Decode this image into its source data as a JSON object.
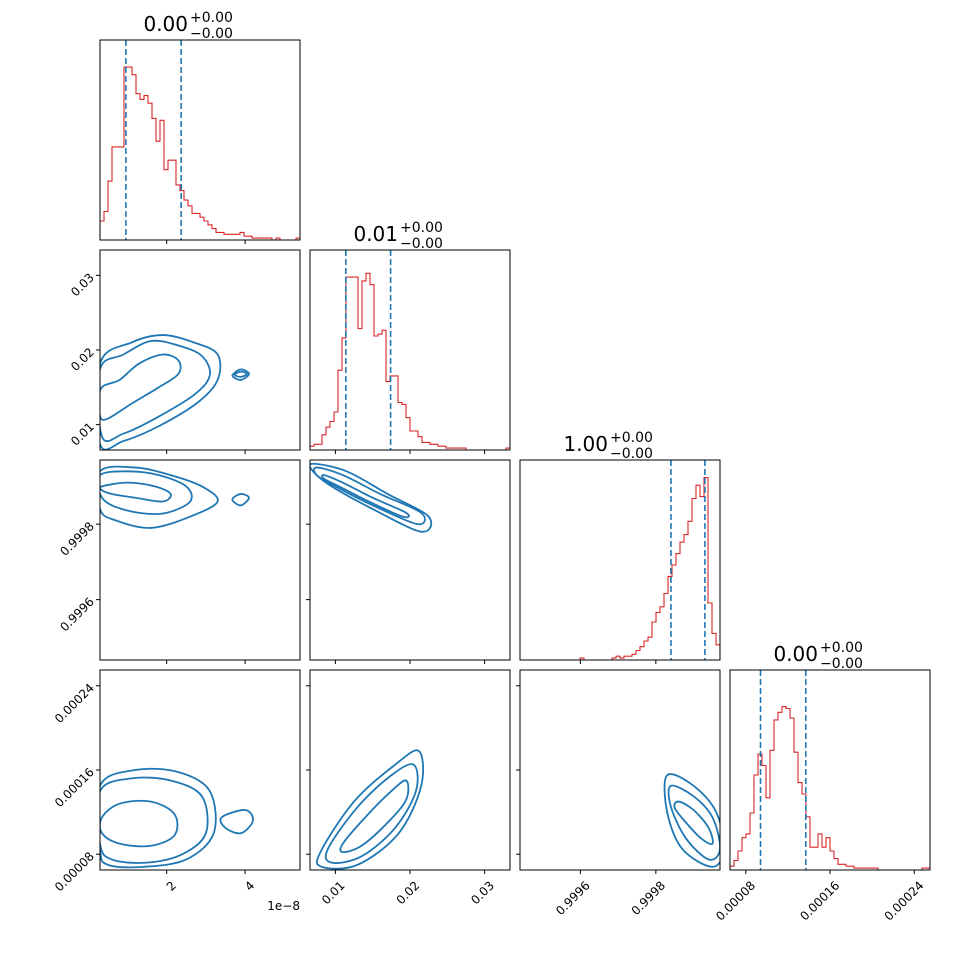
{
  "colors": {
    "hist": "#d62728",
    "quantile": "#1f77b4",
    "contour": "#1f77b4",
    "axes": "#000000",
    "background": "#ffffff"
  },
  "chart_data": {
    "type": "corner",
    "params": [
      {
        "title": {
          "value": "0.00",
          "plus": "+0.00",
          "minus": "−0.00"
        },
        "range": [
          3e-09,
          5.4e-08
        ],
        "ticks": [
          2e-08,
          4e-08
        ],
        "tick_labels": [
          "2",
          "4"
        ],
        "offset_text": "1e−8",
        "quantiles": [
          9.6e-09,
          2.37e-08
        ],
        "hist_y_max": 1.0,
        "hist": [
          0.1,
          0.15,
          0.31,
          0.49,
          0.49,
          0.49,
          0.91,
          0.91,
          0.87,
          0.77,
          0.74,
          0.76,
          0.72,
          0.64,
          0.52,
          0.63,
          0.37,
          0.42,
          0.42,
          0.29,
          0.26,
          0.21,
          0.18,
          0.14,
          0.14,
          0.12,
          0.1,
          0.08,
          0.06,
          0.04,
          0.04,
          0.03,
          0.03,
          0.03,
          0.03,
          0.04,
          0.02,
          0.02,
          0.01,
          0.01,
          0.01,
          0.01,
          0.01,
          0.0,
          0.01,
          0.0,
          0.0,
          0.0,
          0.0,
          0.01
        ]
      },
      {
        "title": {
          "value": "0.01",
          "plus": "+0.00",
          "minus": "−0.00"
        },
        "range": [
          0.0066,
          0.0334
        ],
        "ticks": [
          0.01,
          0.02,
          0.03
        ],
        "tick_labels": [
          "0.01",
          "0.02",
          "0.03"
        ],
        "quantiles": [
          0.0114,
          0.0174
        ],
        "hist_y_max": 1.0,
        "hist": [
          0.02,
          0.03,
          0.03,
          0.08,
          0.12,
          0.15,
          0.2,
          0.42,
          0.59,
          0.91,
          0.91,
          0.91,
          0.64,
          0.89,
          0.93,
          0.87,
          0.6,
          0.61,
          0.63,
          0.36,
          0.39,
          0.39,
          0.25,
          0.24,
          0.17,
          0.1,
          0.1,
          0.07,
          0.04,
          0.04,
          0.03,
          0.03,
          0.02,
          0.02,
          0.01,
          0.01,
          0.01,
          0.01,
          0.01,
          0.0,
          0.0,
          0.0,
          0.0,
          0.0,
          0.0,
          0.0,
          0.0,
          0.0,
          0.0,
          0.01
        ]
      },
      {
        "title": {
          "value": "1.00",
          "plus": "+0.00",
          "minus": "−0.00"
        },
        "range": [
          0.99944,
          0.99997
        ],
        "ticks": [
          0.9996,
          0.9998
        ],
        "tick_labels": [
          "0.9996",
          "0.9998"
        ],
        "quantiles": [
          0.99984,
          0.99993
        ],
        "hist_y_max": 1.0,
        "hist": [
          0,
          0,
          0,
          0,
          0,
          0,
          0,
          0,
          0,
          0,
          0,
          0,
          0,
          0,
          0,
          0.01,
          0,
          0,
          0,
          0,
          0,
          0,
          0,
          0.01,
          0.02,
          0.01,
          0.02,
          0.02,
          0.03,
          0.05,
          0.07,
          0.1,
          0.12,
          0.2,
          0.25,
          0.28,
          0.35,
          0.44,
          0.5,
          0.56,
          0.62,
          0.66,
          0.73,
          0.85,
          0.92,
          0.86,
          0.96,
          0.3,
          0.14,
          0.08
        ]
      },
      {
        "title": {
          "value": "0.00",
          "plus": "+0.00",
          "minus": "−0.00"
        },
        "range": [
          6.5e-05,
          0.000255
        ],
        "ticks": [
          8e-05,
          0.00016,
          0.00024
        ],
        "tick_labels": [
          "0.00008",
          "0.00016",
          "0.00024"
        ],
        "quantiles": [
          9.4e-05,
          0.000137
        ],
        "hist_y_max": 1.0,
        "hist": [
          0.02,
          0.05,
          0.1,
          0.17,
          0.19,
          0.3,
          0.5,
          0.61,
          0.55,
          0.38,
          0.63,
          0.79,
          0.83,
          0.86,
          0.85,
          0.8,
          0.62,
          0.46,
          0.4,
          0.28,
          0.12,
          0.12,
          0.19,
          0.12,
          0.17,
          0.1,
          0.06,
          0.03,
          0.03,
          0.02,
          0.02,
          0.01,
          0.01,
          0.01,
          0.01,
          0.01,
          0.01,
          0.0,
          0.0,
          0.0,
          0.0,
          0.0,
          0.0,
          0.0,
          0.0,
          0.0,
          0.0,
          0.0,
          0.01,
          0.01
        ]
      }
    ],
    "pairs": [
      {
        "i": 1,
        "j": 0,
        "contours": [
          [
            [
              3.2e-09,
              0.0148
            ],
            [
              8e-09,
              0.016
            ],
            [
              1.3e-08,
              0.0182
            ],
            [
              1.9e-08,
              0.0194
            ],
            [
              2.3e-08,
              0.0186
            ],
            [
              2.3e-08,
              0.0168
            ],
            [
              1.8e-08,
              0.015
            ],
            [
              1.1e-08,
              0.0128
            ],
            [
              5e-09,
              0.0108
            ],
            [
              3e-09,
              0.0112
            ]
          ],
          [
            [
              3e-09,
              0.0174
            ],
            [
              9e-09,
              0.0194
            ],
            [
              1.6e-08,
              0.0212
            ],
            [
              2.3e-08,
              0.0206
            ],
            [
              2.9e-08,
              0.0192
            ],
            [
              3.1e-08,
              0.0166
            ],
            [
              2.7e-08,
              0.014
            ],
            [
              1.7e-08,
              0.0108
            ],
            [
              9e-09,
              0.0088
            ],
            [
              3.5e-09,
              0.0084
            ]
          ],
          [
            [
              3e-09,
              0.0182
            ],
            [
              1.1e-08,
              0.021
            ],
            [
              1.9e-08,
              0.022
            ],
            [
              2.7e-08,
              0.021
            ],
            [
              3.3e-08,
              0.0194
            ],
            [
              3.3e-08,
              0.016
            ],
            [
              2.8e-08,
              0.013
            ],
            [
              1.8e-08,
              0.0098
            ],
            [
              9e-09,
              0.0078
            ],
            [
              3e-09,
              0.0074
            ]
          ],
          [
            [
              3.7e-08,
              0.0168
            ],
            [
              3.9e-08,
              0.0174
            ],
            [
              4.1e-08,
              0.0168
            ],
            [
              3.9e-08,
              0.016
            ],
            [
              3.7e-08,
              0.0164
            ]
          ],
          [
            [
              3.75e-08,
              0.0168
            ],
            [
              3.9e-08,
              0.0171
            ],
            [
              4.05e-08,
              0.0168
            ],
            [
              3.9e-08,
              0.0164
            ],
            [
              3.75e-08,
              0.0166
            ]
          ]
        ]
      },
      {
        "i": 2,
        "j": 0,
        "contours": [
          [
            [
              3.5e-09,
              0.9999
            ],
            [
              1e-08,
              0.99991
            ],
            [
              1.7e-08,
              0.9999
            ],
            [
              2.1e-08,
              0.99988
            ],
            [
              1.9e-08,
              0.99986
            ],
            [
              1.2e-08,
              0.99987
            ],
            [
              6e-09,
              0.99988
            ],
            [
              3.5e-09,
              0.99989
            ]
          ],
          [
            [
              3e-09,
              0.99993
            ],
            [
              1e-08,
              0.99994
            ],
            [
              1.8e-08,
              0.99993
            ],
            [
              2.5e-08,
              0.9999
            ],
            [
              2.6e-08,
              0.99986
            ],
            [
              2e-08,
              0.99983
            ],
            [
              1.3e-08,
              0.99983
            ],
            [
              6e-09,
              0.99985
            ],
            [
              3e-09,
              0.99988
            ]
          ],
          [
            [
              3e-09,
              0.99994
            ],
            [
              1.2e-08,
              0.99995
            ],
            [
              2.1e-08,
              0.99993
            ],
            [
              2.9e-08,
              0.9999
            ],
            [
              3.3e-08,
              0.99986
            ],
            [
              2.6e-08,
              0.99982
            ],
            [
              1.6e-08,
              0.99979
            ],
            [
              7e-09,
              0.99981
            ],
            [
              3e-09,
              0.99984
            ]
          ],
          [
            [
              3.7e-08,
              0.99987
            ],
            [
              3.9e-08,
              0.99988
            ],
            [
              4.1e-08,
              0.99987
            ],
            [
              3.9e-08,
              0.99985
            ],
            [
              3.7e-08,
              0.99986
            ]
          ]
        ]
      },
      {
        "i": 2,
        "j": 1,
        "contours": [
          [
            [
              0.0085,
              0.99993
            ],
            [
              0.011,
              0.99991
            ],
            [
              0.015,
              0.99987
            ],
            [
              0.0195,
              0.99983
            ],
            [
              0.019,
              0.99982
            ],
            [
              0.0145,
              0.99986
            ],
            [
              0.0105,
              0.9999
            ],
            [
              0.0085,
              0.99992
            ]
          ],
          [
            [
              0.0075,
              0.99995
            ],
            [
              0.011,
              0.99993
            ],
            [
              0.016,
              0.99988
            ],
            [
              0.0215,
              0.99983
            ],
            [
              0.021,
              0.9998
            ],
            [
              0.015,
              0.99985
            ],
            [
              0.01,
              0.9999
            ],
            [
              0.0075,
              0.99993
            ]
          ],
          [
            [
              0.007,
              0.99996
            ],
            [
              0.0115,
              0.99994
            ],
            [
              0.017,
              0.99988
            ],
            [
              0.0225,
              0.99982
            ],
            [
              0.0215,
              0.99978
            ],
            [
              0.015,
              0.99984
            ],
            [
              0.0095,
              0.9999
            ],
            [
              0.007,
              0.99994
            ]
          ]
        ]
      },
      {
        "i": 3,
        "j": 0,
        "contours": [
          [
            [
              3.5e-09,
              0.000115
            ],
            [
              8e-09,
              0.000128
            ],
            [
              1.6e-08,
              0.00013
            ],
            [
              2.2e-08,
              0.000118
            ],
            [
              2.2e-08,
              9.8e-05
            ],
            [
              1.6e-08,
              8.8e-05
            ],
            [
              8e-09,
              9e-05
            ],
            [
              3.5e-09,
              0.0001
            ]
          ],
          [
            [
              3e-09,
              0.00014
            ],
            [
              1.1e-08,
              0.000152
            ],
            [
              2.1e-08,
              0.00015
            ],
            [
              2.9e-08,
              0.000135
            ],
            [
              3e-08,
              0.0001
            ],
            [
              2.4e-08,
              8e-05
            ],
            [
              1.5e-08,
              7.2e-05
            ],
            [
              6e-09,
              7.5e-05
            ],
            [
              3e-09,
              9e-05
            ]
          ],
          [
            [
              3e-09,
              0.000145
            ],
            [
              1.2e-08,
              0.00016
            ],
            [
              2.3e-08,
              0.000158
            ],
            [
              3.1e-08,
              0.00014
            ],
            [
              3.2e-08,
              0.0001
            ],
            [
              2.5e-08,
              7.5e-05
            ],
            [
              1.4e-08,
              6.8e-05
            ],
            [
              5e-09,
              7e-05
            ],
            [
              3e-09,
              8.5e-05
            ]
          ],
          [
            [
              3.4e-08,
              0.000115
            ],
            [
              4e-08,
              0.000122
            ],
            [
              4.2e-08,
              0.000112
            ],
            [
              3.9e-08,
              0.0001
            ],
            [
              3.5e-08,
              0.000105
            ]
          ]
        ]
      },
      {
        "i": 3,
        "j": 1,
        "contours": [
          [
            [
              0.011,
              9e-05
            ],
            [
              0.014,
              0.000115
            ],
            [
              0.0175,
              0.00014
            ],
            [
              0.0195,
              0.00015
            ],
            [
              0.0195,
              0.000132
            ],
            [
              0.017,
              0.00011
            ],
            [
              0.0135,
              8.8e-05
            ],
            [
              0.011,
              8.2e-05
            ]
          ],
          [
            [
              0.009,
              8.5e-05
            ],
            [
              0.013,
              0.000125
            ],
            [
              0.0175,
              0.000155
            ],
            [
              0.0205,
              0.000165
            ],
            [
              0.0208,
              0.00014
            ],
            [
              0.018,
              0.000105
            ],
            [
              0.0135,
              7.8e-05
            ],
            [
              0.0095,
              7.2e-05
            ]
          ],
          [
            [
              0.008,
              8.2e-05
            ],
            [
              0.0125,
              0.00013
            ],
            [
              0.018,
              0.000165
            ],
            [
              0.0212,
              0.000178
            ],
            [
              0.0215,
              0.000145
            ],
            [
              0.0185,
              0.0001
            ],
            [
              0.013,
              7e-05
            ],
            [
              0.0082,
              6.8e-05
            ]
          ]
        ]
      },
      {
        "i": 3,
        "j": 2,
        "contours": [
          [
            [
              0.99986,
              0.00013
            ],
            [
              0.9999,
              0.000122
            ],
            [
              0.99994,
              0.000105
            ],
            [
              0.99995,
              9e-05
            ],
            [
              0.99992,
              9.5e-05
            ],
            [
              0.99988,
              0.00011
            ],
            [
              0.99985,
              0.000124
            ]
          ],
          [
            [
              0.99984,
              0.000145
            ],
            [
              0.9999,
              0.000135
            ],
            [
              0.99995,
              0.000115
            ],
            [
              0.99997,
              8.5e-05
            ],
            [
              0.99994,
              7.5e-05
            ],
            [
              0.99988,
              9.5e-05
            ],
            [
              0.99984,
              0.000125
            ]
          ],
          [
            [
              0.99983,
              0.000155
            ],
            [
              0.9999,
              0.000145
            ],
            [
              0.99996,
              0.00012
            ],
            [
              0.99998,
              8.5e-05
            ],
            [
              0.99995,
              6.8e-05
            ],
            [
              0.99987,
              8.5e-05
            ],
            [
              0.99983,
              0.00012
            ]
          ]
        ]
      }
    ],
    "grid": false,
    "legend": "none"
  }
}
